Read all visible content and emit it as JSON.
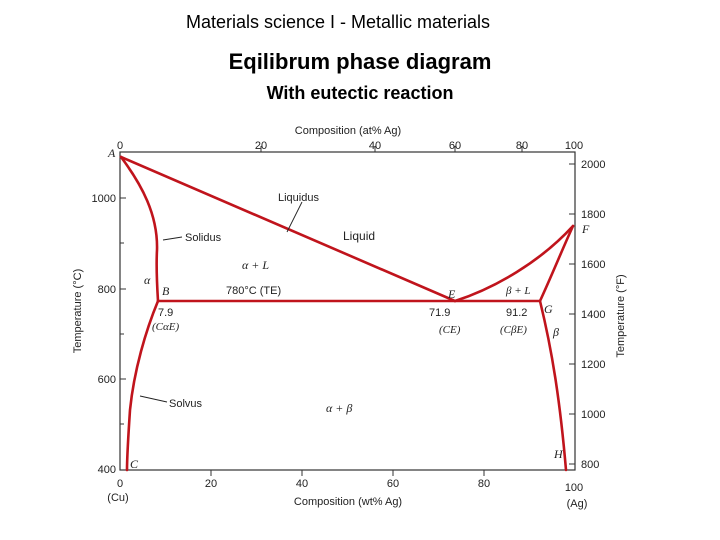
{
  "header": {
    "course": "Materials science I - Metallic materials",
    "title": "Eqilibrum phase diagram",
    "subtitle": "With eutectic reaction"
  },
  "diagram": {
    "top_axis_label": "Composition (at% Ag)",
    "top_ticks": [
      "0",
      "20",
      "40",
      "60",
      "80",
      "100"
    ],
    "bottom_axis_label": "Composition (wt% Ag)",
    "bottom_ticks": [
      "0",
      "20",
      "40",
      "60",
      "80",
      "100"
    ],
    "bottom_end_left": "(Cu)",
    "bottom_end_right": "(Ag)",
    "left_axis_label": "Temperature (°C)",
    "left_ticks": [
      "400",
      "600",
      "800",
      "1000"
    ],
    "right_axis_label": "Temperature (°F)",
    "right_ticks": [
      "800",
      "1000",
      "1200",
      "1400",
      "1600",
      "1800",
      "2000"
    ],
    "points": {
      "A": "A",
      "B": "B",
      "C": "C",
      "E": "E",
      "F": "F",
      "G": "G",
      "H": "H"
    },
    "region_labels": {
      "liquidus": "Liquidus",
      "solidus": "Solidus",
      "solvus": "Solvus",
      "liquid": "Liquid",
      "alpha": "α",
      "beta": "β",
      "alpha_plus_l": "α + L",
      "beta_plus_l": "β + L",
      "alpha_plus_beta": "α + β"
    },
    "eutectic_temp_label": "780°C (TE)",
    "compositions": {
      "b_value": "7.9",
      "b_name": "(CαE)",
      "e_value": "71.9",
      "e_name": "(CE)",
      "g_value": "91.2",
      "g_name": "(CβE)"
    },
    "curve_color": "#c0141c"
  }
}
